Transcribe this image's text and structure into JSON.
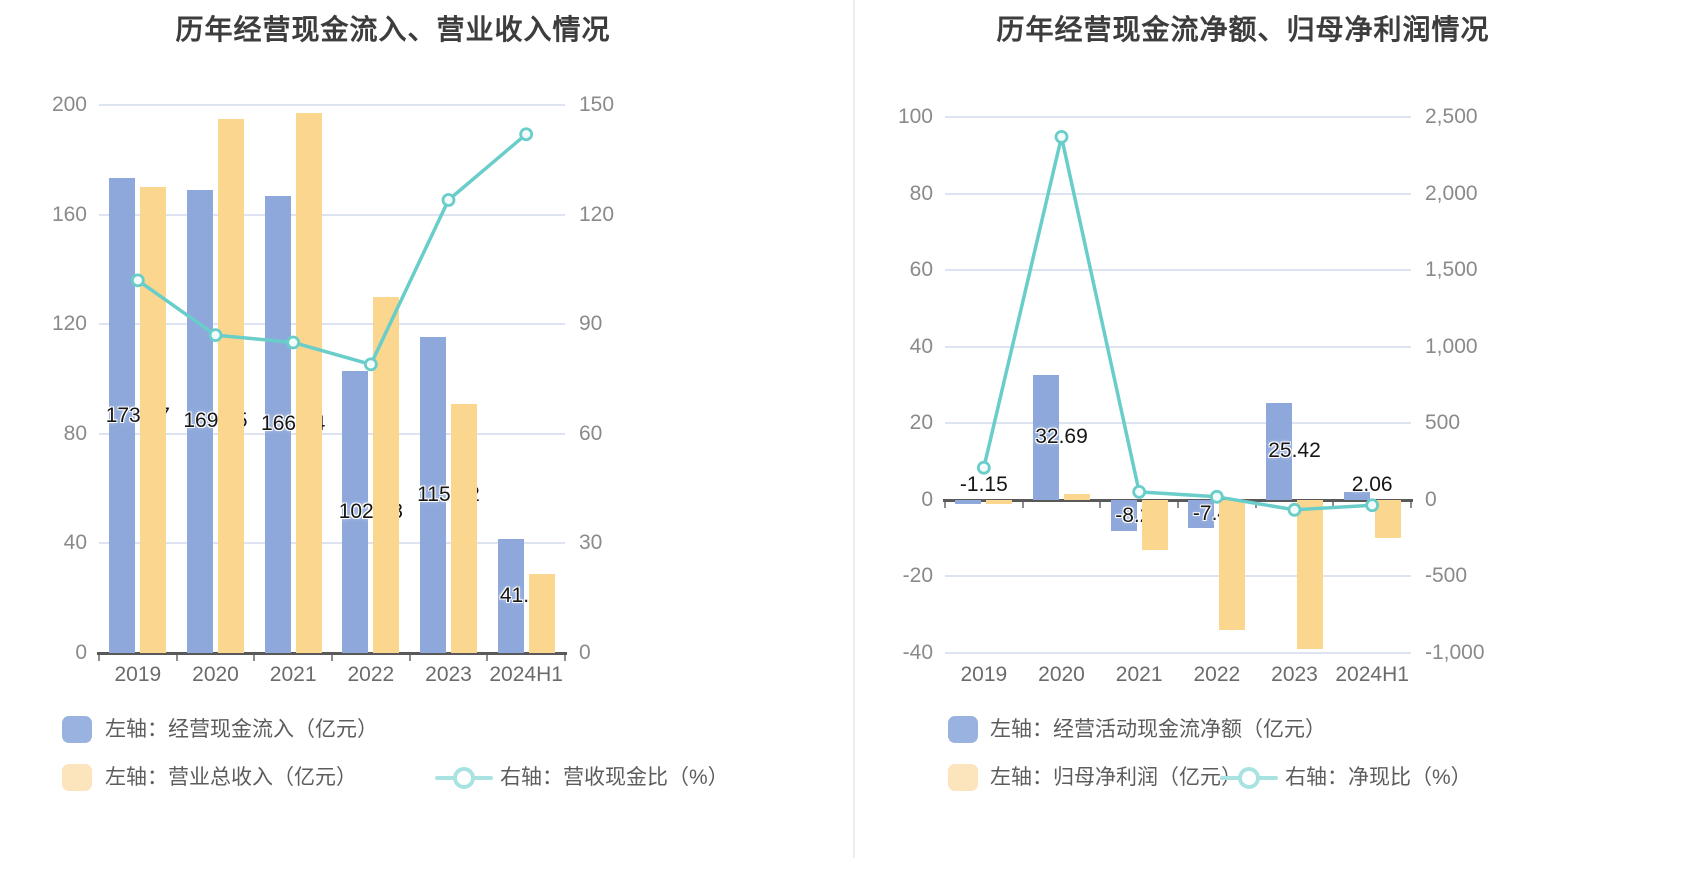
{
  "page": {
    "background": "#ffffff",
    "divider_color": "#ededed",
    "grid_color": "#dee3f1",
    "axis_color": "#595959"
  },
  "chart_data": [
    {
      "type": "combo_bar_line",
      "title": "历年经营现金流入、营业收入情况",
      "categories": [
        "2019",
        "2020",
        "2021",
        "2022",
        "2023",
        "2024H1"
      ],
      "left_axis": {
        "min": 0,
        "max": 200,
        "ticks": [
          "200",
          "160",
          "120",
          "80",
          "40",
          "0"
        ]
      },
      "right_axis": {
        "min": 0,
        "max": 150,
        "ticks": [
          "150",
          "120",
          "90",
          "60",
          "30",
          "0"
        ]
      },
      "grid": true,
      "legend_position": "bottom-left",
      "series": [
        {
          "name": "左轴：经营现金流入（亿元）",
          "type": "bar",
          "axis": "left",
          "color": "#8EA8DB",
          "legend_color": "#9AB2DF",
          "show_labels": true,
          "values": [
            173.27,
            169.05,
            166.94,
            102.88,
            115.22,
            41.67
          ]
        },
        {
          "name": "左轴：营业总收入（亿元）",
          "type": "bar",
          "axis": "left",
          "color": "#FBD68E",
          "legend_color": "#FCE4BD",
          "show_labels": false,
          "values": [
            170,
            195,
            197,
            130,
            91,
            29
          ]
        },
        {
          "name": "右轴：营收现金比（%）",
          "type": "line",
          "axis": "right",
          "color": "#69CDC9",
          "legend_color": "#A9E3E1",
          "marker_fill": "#F4FBFB",
          "show_labels": false,
          "values": [
            102,
            87,
            85,
            79,
            124,
            142
          ]
        }
      ]
    },
    {
      "type": "combo_bar_line",
      "title": "历年经营现金流净额、归母净利润情况",
      "categories": [
        "2019",
        "2020",
        "2021",
        "2022",
        "2023",
        "2024H1"
      ],
      "left_axis": {
        "min": -40,
        "max": 100,
        "ticks": [
          "100",
          "80",
          "60",
          "40",
          "20",
          "0",
          "-20",
          "-40"
        ]
      },
      "right_axis": {
        "min": -1000,
        "max": 2500,
        "ticks": [
          "2,500",
          "2,000",
          "1,500",
          "1,000",
          "500",
          "0",
          "-500",
          "-1,000"
        ]
      },
      "grid": true,
      "legend_position": "bottom-left",
      "series": [
        {
          "name": "左轴：经营活动现金流净额（亿元）",
          "type": "bar",
          "axis": "left",
          "color": "#8EA8DB",
          "legend_color": "#9AB2DF",
          "show_labels": true,
          "values": [
            -1.15,
            32.69,
            -8.21,
            -7.42,
            25.42,
            2.06
          ]
        },
        {
          "name": "左轴：归母净利润（亿元）",
          "type": "bar",
          "axis": "left",
          "color": "#FBD68E",
          "legend_color": "#FCE4BD",
          "show_labels": false,
          "values": [
            -1,
            1.4,
            -13,
            -34,
            -39,
            -10
          ]
        },
        {
          "name": "右轴：净现比（%）",
          "type": "line",
          "axis": "right",
          "color": "#69CDC9",
          "legend_color": "#A9E3E1",
          "marker_fill": "#F4FBFB",
          "show_labels": false,
          "values": [
            210,
            2370,
            52,
            20,
            -65,
            -35
          ]
        }
      ]
    }
  ]
}
